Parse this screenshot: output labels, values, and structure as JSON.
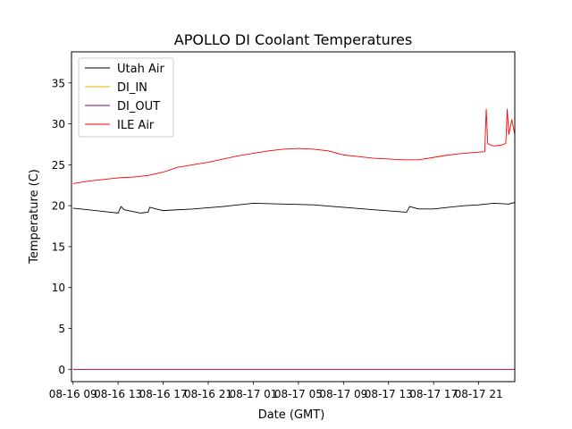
{
  "chart_data": {
    "type": "line",
    "title": "APOLLO DI Coolant Temperatures",
    "xlabel": "Date (GMT)",
    "ylabel": "Temperature (C)",
    "ylim": [
      -1.5,
      38.8
    ],
    "xlim": [
      -0.1,
      29.4
    ],
    "y_ticks": [
      0,
      5,
      10,
      15,
      20,
      25,
      30,
      35
    ],
    "x_ticks": [
      {
        "pos": 0,
        "label": "08-16 09"
      },
      {
        "pos": 3,
        "label": "08-16 13"
      },
      {
        "pos": 6,
        "label": "08-16 17"
      },
      {
        "pos": 9,
        "label": "08-16 21"
      },
      {
        "pos": 12,
        "label": "08-17 01"
      },
      {
        "pos": 15,
        "label": "08-17 05"
      },
      {
        "pos": 18,
        "label": "08-17 09"
      },
      {
        "pos": 21,
        "label": "08-17 13"
      },
      {
        "pos": 24,
        "label": "08-17 17"
      },
      {
        "pos": 27,
        "label": "08-17 21"
      }
    ],
    "legend_position": "top-left",
    "series": [
      {
        "name": "Utah Air",
        "color": "#000000",
        "x": [
          0,
          1,
          2,
          3,
          3.2,
          3.4,
          4.5,
          5,
          5.1,
          6,
          8,
          10,
          12,
          14,
          16,
          18,
          20,
          21.5,
          22.2,
          22.4,
          23,
          24,
          25,
          26,
          27,
          28,
          29,
          29.4
        ],
        "y": [
          19.7,
          19.5,
          19.3,
          19.1,
          19.9,
          19.5,
          19.1,
          19.2,
          19.8,
          19.4,
          19.6,
          19.9,
          20.3,
          20.2,
          20.1,
          19.8,
          19.5,
          19.3,
          19.2,
          19.9,
          19.6,
          19.6,
          19.8,
          20.0,
          20.1,
          20.3,
          20.2,
          20.4
        ]
      },
      {
        "name": "DI_IN",
        "color": "#e6b800",
        "x": [
          0,
          29.4
        ],
        "y": [
          0,
          0
        ]
      },
      {
        "name": "DI_OUT",
        "color": "#800080",
        "x": [
          0,
          29.4
        ],
        "y": [
          0,
          0
        ]
      },
      {
        "name": "ILE Air",
        "color": "#ff0000",
        "x": [
          0,
          1,
          2,
          3,
          4,
          5,
          6,
          7,
          8,
          9,
          10,
          11,
          12,
          13,
          14,
          15,
          16,
          17,
          18,
          19,
          20,
          21,
          22,
          23,
          24,
          25,
          26,
          27.4,
          27.5,
          27.6,
          27.8,
          28,
          28.5,
          28.8,
          28.9,
          29.0,
          29.2,
          29.4
        ],
        "y": [
          22.7,
          23.0,
          23.2,
          23.4,
          23.5,
          23.7,
          24.1,
          24.7,
          25.0,
          25.3,
          25.7,
          26.1,
          26.4,
          26.7,
          26.9,
          27.0,
          26.9,
          26.7,
          26.2,
          26.0,
          25.8,
          25.7,
          25.6,
          25.6,
          25.9,
          26.2,
          26.4,
          26.6,
          31.8,
          27.6,
          27.4,
          27.3,
          27.4,
          27.6,
          31.8,
          28.7,
          30.5,
          28.7
        ]
      }
    ]
  }
}
